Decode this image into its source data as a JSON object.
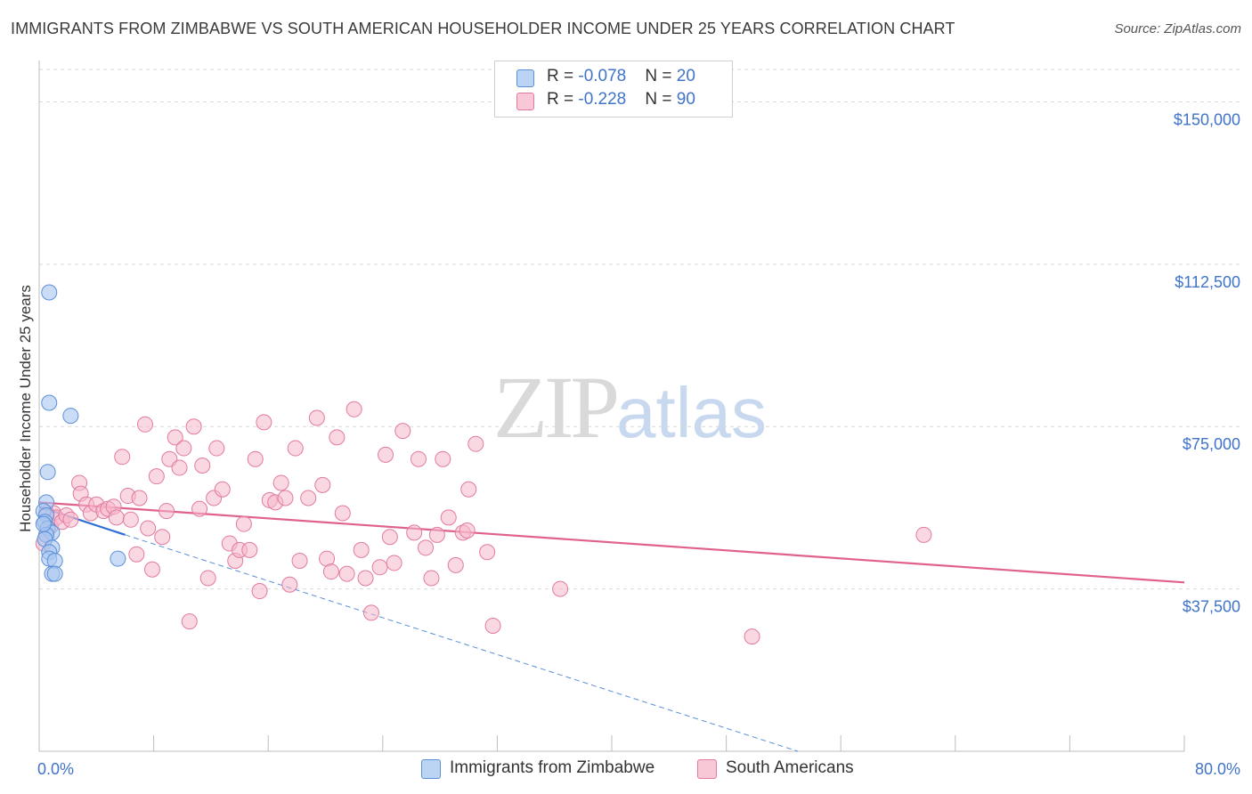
{
  "title": "IMMIGRANTS FROM ZIMBABWE VS SOUTH AMERICAN HOUSEHOLDER INCOME UNDER 25 YEARS CORRELATION CHART",
  "source": "Source: ZipAtlas.com",
  "watermark": {
    "zip": "ZIP",
    "atlas": "atlas"
  },
  "legend": {
    "series1": {
      "r_label": "R = ",
      "r_value": "-0.078",
      "n_label": "N = ",
      "n_value": "20"
    },
    "series2": {
      "r_label": "R = ",
      "r_value": "-0.228",
      "n_label": "N = ",
      "n_value": "90"
    }
  },
  "colors": {
    "blue_fill": "#a9c6f0",
    "blue_stroke": "#5b8fd8",
    "blue_line": "#2f6fd6",
    "pink_fill": "#f5b8cb",
    "pink_stroke": "#e27aa0",
    "pink_line": "#e0608e",
    "grid": "#d9d9d9",
    "tick_text": "#3f74c9"
  },
  "chart_data": {
    "type": "scatter",
    "title": "IMMIGRANTS FROM ZIMBABWE VS SOUTH AMERICAN HOUSEHOLDER INCOME UNDER 25 YEARS CORRELATION CHART",
    "xlabel": "",
    "ylabel": "Householder Income Under 25 years",
    "xlim": [
      0,
      80
    ],
    "ylim": [
      0,
      157500
    ],
    "x_tick_labels": {
      "left": "0.0%",
      "right": "80.0%"
    },
    "y_ticks": [
      {
        "value": 37500,
        "label": "$37,500"
      },
      {
        "value": 75000,
        "label": "$75,000"
      },
      {
        "value": 112500,
        "label": "$112,500"
      },
      {
        "value": 150000,
        "label": "$150,000"
      }
    ],
    "series": [
      {
        "name": "Immigrants from Zimbabwe",
        "color": "blue",
        "points": [
          [
            0.7,
            106000
          ],
          [
            0.7,
            80500
          ],
          [
            2.2,
            77500
          ],
          [
            0.6,
            64500
          ],
          [
            0.5,
            57500
          ],
          [
            0.3,
            55500
          ],
          [
            0.5,
            54500
          ],
          [
            0.4,
            53000
          ],
          [
            0.6,
            51500
          ],
          [
            0.9,
            50500
          ],
          [
            0.5,
            50000
          ],
          [
            0.4,
            49000
          ],
          [
            0.9,
            47000
          ],
          [
            0.7,
            46000
          ],
          [
            0.7,
            44500
          ],
          [
            1.1,
            44000
          ],
          [
            5.5,
            44500
          ],
          [
            0.9,
            41000
          ],
          [
            1.1,
            41000
          ],
          [
            0.3,
            52500
          ]
        ],
        "trend_solid": {
          "x": [
            0.0,
            6.0
          ],
          "y": [
            56500,
            50000
          ]
        },
        "trend_dashed": {
          "x": [
            6.0,
            53.0
          ],
          "y": [
            50000,
            0
          ]
        }
      },
      {
        "name": "South Americans",
        "color": "pink",
        "points": [
          [
            0.3,
            48000
          ],
          [
            0.5,
            50000
          ],
          [
            0.8,
            52000
          ],
          [
            1.0,
            55000
          ],
          [
            1.2,
            54000
          ],
          [
            1.6,
            53000
          ],
          [
            1.9,
            54500
          ],
          [
            2.2,
            53500
          ],
          [
            2.8,
            62000
          ],
          [
            2.9,
            59500
          ],
          [
            3.3,
            57000
          ],
          [
            3.6,
            55000
          ],
          [
            4.0,
            57000
          ],
          [
            4.5,
            55500
          ],
          [
            4.8,
            56000
          ],
          [
            5.2,
            56500
          ],
          [
            5.4,
            54000
          ],
          [
            5.8,
            68000
          ],
          [
            6.2,
            59000
          ],
          [
            6.4,
            53500
          ],
          [
            6.8,
            45500
          ],
          [
            7.0,
            58500
          ],
          [
            7.4,
            75500
          ],
          [
            7.6,
            51500
          ],
          [
            7.9,
            42000
          ],
          [
            8.2,
            63500
          ],
          [
            8.6,
            49500
          ],
          [
            8.9,
            55500
          ],
          [
            9.1,
            67500
          ],
          [
            9.5,
            72500
          ],
          [
            9.8,
            65500
          ],
          [
            10.1,
            70000
          ],
          [
            10.5,
            30000
          ],
          [
            10.8,
            75000
          ],
          [
            11.2,
            56000
          ],
          [
            11.4,
            66000
          ],
          [
            11.8,
            40000
          ],
          [
            12.2,
            58500
          ],
          [
            12.4,
            70000
          ],
          [
            12.8,
            60500
          ],
          [
            13.3,
            48000
          ],
          [
            13.7,
            44000
          ],
          [
            14.0,
            46500
          ],
          [
            14.3,
            52500
          ],
          [
            14.7,
            46500
          ],
          [
            15.1,
            67500
          ],
          [
            15.4,
            37000
          ],
          [
            15.7,
            76000
          ],
          [
            16.1,
            58000
          ],
          [
            16.5,
            57500
          ],
          [
            16.9,
            62000
          ],
          [
            17.2,
            58500
          ],
          [
            17.5,
            38500
          ],
          [
            17.9,
            70000
          ],
          [
            18.2,
            44000
          ],
          [
            18.8,
            58500
          ],
          [
            19.4,
            77000
          ],
          [
            19.8,
            61500
          ],
          [
            20.1,
            44500
          ],
          [
            20.4,
            41500
          ],
          [
            20.8,
            72500
          ],
          [
            21.2,
            55000
          ],
          [
            21.5,
            41000
          ],
          [
            22.0,
            79000
          ],
          [
            22.5,
            46500
          ],
          [
            22.8,
            40000
          ],
          [
            23.2,
            32000
          ],
          [
            23.8,
            42500
          ],
          [
            24.2,
            68500
          ],
          [
            24.5,
            49500
          ],
          [
            24.8,
            43500
          ],
          [
            25.4,
            74000
          ],
          [
            26.2,
            50500
          ],
          [
            26.5,
            67500
          ],
          [
            27.0,
            47000
          ],
          [
            27.4,
            40000
          ],
          [
            27.8,
            50000
          ],
          [
            28.2,
            67500
          ],
          [
            28.6,
            54000
          ],
          [
            29.1,
            43000
          ],
          [
            29.6,
            50500
          ],
          [
            29.9,
            51000
          ],
          [
            30.0,
            60500
          ],
          [
            30.5,
            71000
          ],
          [
            31.3,
            46000
          ],
          [
            31.7,
            29000
          ],
          [
            36.4,
            37500
          ],
          [
            49.8,
            26500
          ],
          [
            61.8,
            50000
          ],
          [
            0.5,
            55000
          ]
        ],
        "trend_solid": {
          "x": [
            0.0,
            80.0
          ],
          "y": [
            57500,
            39000
          ]
        }
      }
    ],
    "legend_placement": "top-center"
  }
}
